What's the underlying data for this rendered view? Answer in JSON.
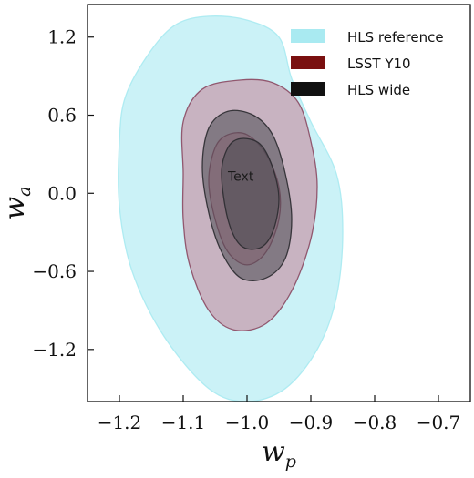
{
  "chart_data": {
    "type": "contour",
    "xlabel_main": "w",
    "xlabel_sub": "p",
    "ylabel_main": "w",
    "ylabel_sub": "a",
    "xlim": [
      -1.25,
      -0.65
    ],
    "ylim": [
      -1.6,
      1.45
    ],
    "xticks": [
      -1.2,
      -1.1,
      -1.0,
      -0.9,
      -0.8,
      -0.7
    ],
    "xtick_labels": [
      "−1.2",
      "−1.1",
      "−1.0",
      "−0.9",
      "−0.8",
      "−0.7"
    ],
    "yticks": [
      1.2,
      0.6,
      0.0,
      -0.6,
      -1.2
    ],
    "ytick_labels": [
      "1.2",
      "0.6",
      "0.0",
      "−0.6",
      "−1.2"
    ],
    "legend_position": "top-right",
    "annotation": "Text",
    "annotation_point": [
      -1.01,
      0.13
    ],
    "series": [
      {
        "name": "HLS reference",
        "color": "#a9eaf1",
        "stroke": "#a9eaf1",
        "opacity": 0.6,
        "levels": [
          [
            [
              -1.19,
              0.75
            ],
            [
              -1.15,
              1.1
            ],
            [
              -1.11,
              1.3
            ],
            [
              -1.06,
              1.36
            ],
            [
              -1.0,
              1.33
            ],
            [
              -0.95,
              1.2
            ],
            [
              -0.93,
              0.88
            ],
            [
              -0.9,
              0.55
            ],
            [
              -0.86,
              0.15
            ],
            [
              -0.85,
              -0.3
            ],
            [
              -0.86,
              -0.8
            ],
            [
              -0.89,
              -1.2
            ],
            [
              -0.94,
              -1.5
            ],
            [
              -1.0,
              -1.6
            ],
            [
              -1.06,
              -1.5
            ],
            [
              -1.13,
              -1.1
            ],
            [
              -1.18,
              -0.6
            ],
            [
              -1.2,
              -0.1
            ],
            [
              -1.2,
              0.4
            ]
          ]
        ]
      },
      {
        "name": "LSST Y10",
        "color": "#c77f95",
        "stroke": "#8b4a63",
        "opacity": 0.55,
        "levels": [
          [
            [
              -1.1,
              0.15
            ],
            [
              -1.1,
              0.55
            ],
            [
              -1.07,
              0.8
            ],
            [
              -1.01,
              0.87
            ],
            [
              -0.96,
              0.85
            ],
            [
              -0.92,
              0.7
            ],
            [
              -0.9,
              0.4
            ],
            [
              -0.89,
              0.05
            ],
            [
              -0.9,
              -0.35
            ],
            [
              -0.93,
              -0.75
            ],
            [
              -0.97,
              -1.0
            ],
            [
              -1.02,
              -1.05
            ],
            [
              -1.06,
              -0.9
            ],
            [
              -1.09,
              -0.55
            ],
            [
              -1.1,
              -0.2
            ]
          ],
          [
            [
              -1.06,
              0.1
            ],
            [
              -1.05,
              0.35
            ],
            [
              -1.03,
              0.45
            ],
            [
              -1.0,
              0.45
            ],
            [
              -0.97,
              0.3
            ],
            [
              -0.95,
              0.05
            ],
            [
              -0.95,
              -0.2
            ],
            [
              -0.97,
              -0.45
            ],
            [
              -1.0,
              -0.55
            ],
            [
              -1.03,
              -0.45
            ],
            [
              -1.05,
              -0.2
            ]
          ]
        ]
      },
      {
        "name": "HLS wide",
        "color": "#4a4a52",
        "stroke": "#2b2b30",
        "opacity": 0.55,
        "levels": [
          [
            [
              -1.07,
              0.2
            ],
            [
              -1.06,
              0.5
            ],
            [
              -1.03,
              0.63
            ],
            [
              -0.99,
              0.6
            ],
            [
              -0.96,
              0.45
            ],
            [
              -0.94,
              0.15
            ],
            [
              -0.93,
              -0.2
            ],
            [
              -0.94,
              -0.5
            ],
            [
              -0.97,
              -0.65
            ],
            [
              -1.01,
              -0.65
            ],
            [
              -1.04,
              -0.45
            ],
            [
              -1.06,
              -0.15
            ]
          ],
          [
            [
              -1.04,
              0.15
            ],
            [
              -1.03,
              0.35
            ],
            [
              -1.01,
              0.42
            ],
            [
              -0.98,
              0.38
            ],
            [
              -0.96,
              0.2
            ],
            [
              -0.95,
              -0.05
            ],
            [
              -0.96,
              -0.3
            ],
            [
              -0.98,
              -0.42
            ],
            [
              -1.01,
              -0.4
            ],
            [
              -1.03,
              -0.2
            ]
          ]
        ]
      }
    ]
  }
}
